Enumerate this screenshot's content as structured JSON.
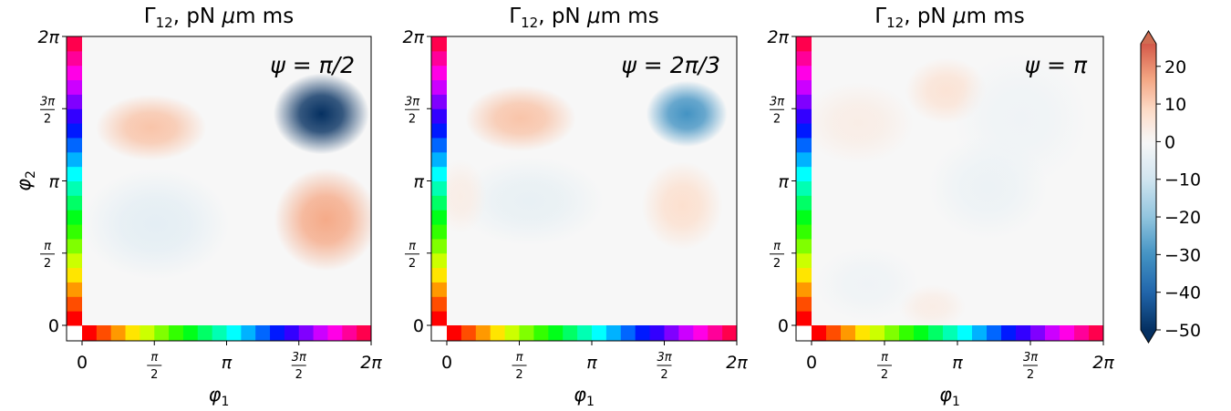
{
  "figure": {
    "shared_xlabel": "φ",
    "shared_xlabel_sub": "1",
    "shared_ylabel": "φ",
    "shared_ylabel_sub": "2",
    "title_main": "Γ",
    "title_sub": "12",
    "title_rest": ", pN μm ms"
  },
  "colorbar": {
    "colormap": "RdBu_r",
    "min": -50,
    "max": 26,
    "extend": "both",
    "ticks": [
      20,
      10,
      0,
      -10,
      -20,
      -30,
      -40,
      -50
    ],
    "tick_labels": [
      "20",
      "10",
      "0",
      "−10",
      "−20",
      "−30",
      "−40",
      "−50"
    ],
    "colors": {
      "min_color": "#053061",
      "zero_color": "#f7f7f7",
      "max_color": "#cf6d52"
    }
  },
  "axis_ticks": {
    "x": [
      {
        "kind": "plain",
        "text": "0"
      },
      {
        "kind": "frac",
        "num": "π",
        "den": "2"
      },
      {
        "kind": "plain",
        "text": "π"
      },
      {
        "kind": "frac",
        "num": "3π",
        "den": "2"
      },
      {
        "kind": "plain",
        "text": "2π"
      }
    ],
    "y": [
      {
        "kind": "plain",
        "text": "0"
      },
      {
        "kind": "frac",
        "num": "π",
        "den": "2"
      },
      {
        "kind": "plain",
        "text": "π"
      },
      {
        "kind": "frac",
        "num": "3π",
        "den": "2"
      },
      {
        "kind": "plain",
        "text": "2π"
      }
    ]
  },
  "phase_strip": {
    "colormap": "hsv",
    "segments": 20
  },
  "chart_data": [
    {
      "type": "heatmap",
      "title": "Γ12, pN μm ms",
      "annotation": "ψ = π/2",
      "annotation_lhs": "ψ",
      "annotation_rhs": "π/2",
      "xlabel": "φ1",
      "ylabel": "φ2",
      "xlim": [
        0,
        6.2832
      ],
      "ylim": [
        0,
        6.2832
      ],
      "features": [
        {
          "x": 5.2,
          "y": 4.6,
          "sx": 0.65,
          "sy": 0.55,
          "value": -50
        },
        {
          "x": 5.3,
          "y": 2.3,
          "sx": 0.7,
          "sy": 0.7,
          "value": 16
        },
        {
          "x": 1.5,
          "y": 4.3,
          "sx": 0.75,
          "sy": 0.45,
          "value": 12
        },
        {
          "x": 1.6,
          "y": 2.2,
          "sx": 1.0,
          "sy": 0.75,
          "value": -5
        }
      ]
    },
    {
      "type": "heatmap",
      "title": "Γ12, pN μm ms",
      "annotation": "ψ = 2π/3",
      "annotation_lhs": "ψ",
      "annotation_rhs": "2π/3",
      "xlabel": "φ1",
      "ylabel": "φ2",
      "xlim": [
        0,
        6.2832
      ],
      "ylim": [
        0,
        6.2832
      ],
      "features": [
        {
          "x": 5.2,
          "y": 4.6,
          "sx": 0.55,
          "sy": 0.45,
          "value": -30
        },
        {
          "x": 1.6,
          "y": 4.5,
          "sx": 0.75,
          "sy": 0.45,
          "value": 12
        },
        {
          "x": 5.1,
          "y": 2.6,
          "sx": 0.55,
          "sy": 0.6,
          "value": 7
        },
        {
          "x": 1.8,
          "y": 2.7,
          "sx": 1.0,
          "sy": 0.6,
          "value": -4
        },
        {
          "x": 0.3,
          "y": 2.8,
          "sx": 0.35,
          "sy": 0.5,
          "value": 3
        }
      ]
    },
    {
      "type": "heatmap",
      "title": "Γ12, pN μm ms",
      "annotation": "ψ = π",
      "annotation_lhs": "ψ",
      "annotation_rhs": "π",
      "xlabel": "φ1",
      "ylabel": "φ2",
      "xlim": [
        0,
        6.2832
      ],
      "ylim": [
        0,
        6.2832
      ],
      "features": [
        {
          "x": 2.9,
          "y": 5.1,
          "sx": 0.55,
          "sy": 0.45,
          "value": 6
        },
        {
          "x": 1.0,
          "y": 4.4,
          "sx": 0.75,
          "sy": 0.55,
          "value": 3
        },
        {
          "x": 4.5,
          "y": 4.5,
          "sx": 0.9,
          "sy": 0.9,
          "value": -2
        },
        {
          "x": 3.8,
          "y": 3.0,
          "sx": 0.8,
          "sy": 0.7,
          "value": -3
        },
        {
          "x": 2.6,
          "y": 0.4,
          "sx": 0.45,
          "sy": 0.3,
          "value": 3
        },
        {
          "x": 1.2,
          "y": 0.9,
          "sx": 0.7,
          "sy": 0.5,
          "value": -2
        }
      ]
    }
  ]
}
